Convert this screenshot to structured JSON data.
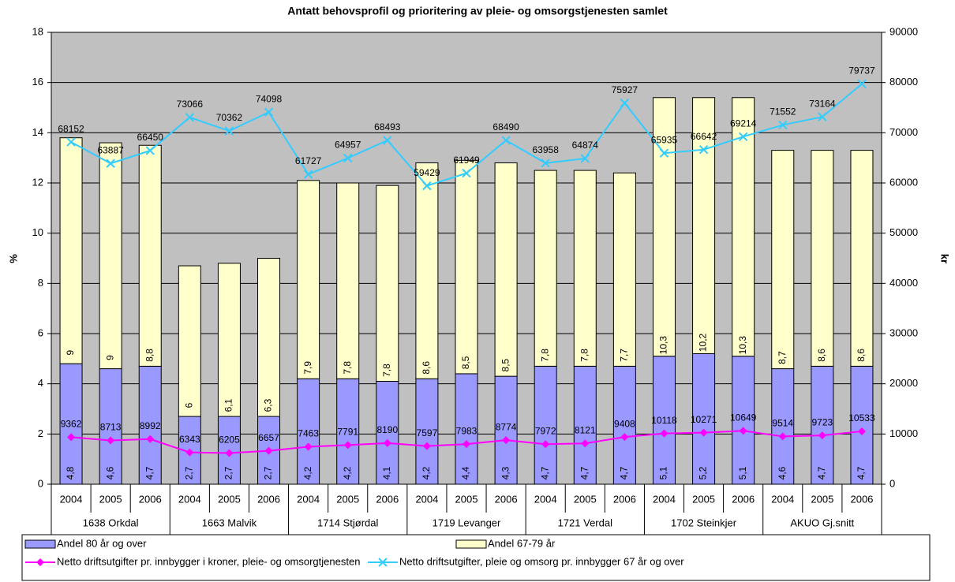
{
  "chart_data": {
    "type": "bar",
    "stacked": true,
    "title": "Antatt behovsprofil og prioritering av pleie- og omsorgstjenesten samlet",
    "ylabel": "%",
    "y2label": "kr",
    "categories": [
      "2004",
      "2005",
      "2006",
      "2004",
      "2005",
      "2006",
      "2004",
      "2005",
      "2006",
      "2004",
      "2005",
      "2006",
      "2004",
      "2005",
      "2006",
      "2004",
      "2005",
      "2006",
      "2004",
      "2005",
      "2006"
    ],
    "groups": [
      "1638 Orkdal",
      "1663 Malvik",
      "1714 Stjørdal",
      "1719 Levanger",
      "1721 Verdal",
      "1702 Steinkjer",
      "AKUO Gj.snitt"
    ],
    "ylim": [
      0,
      18
    ],
    "yticks": [
      0,
      2,
      4,
      6,
      8,
      10,
      12,
      14,
      16,
      18
    ],
    "y2lim": [
      0,
      90000
    ],
    "y2ticks": [
      0,
      10000,
      20000,
      30000,
      40000,
      50000,
      60000,
      70000,
      80000,
      90000
    ],
    "grid": true,
    "plot_background": "#c0c0c0",
    "legend": "bottom",
    "series": [
      {
        "name": "Andel 80 år og over",
        "type": "bar",
        "color": "#9999ff",
        "values": [
          4.8,
          4.6,
          4.7,
          2.7,
          2.7,
          2.7,
          4.2,
          4.2,
          4.1,
          4.2,
          4.4,
          4.3,
          4.7,
          4.7,
          4.7,
          5.1,
          5.2,
          5.1,
          4.6,
          4.7,
          4.7
        ],
        "value_labels": [
          "4,8",
          "4,6",
          "4,7",
          "2,7",
          "2,7",
          "2,7",
          "4,2",
          "4,2",
          "4,1",
          "4,2",
          "4,4",
          "4,3",
          "4,7",
          "4,7",
          "4,7",
          "5,1",
          "5,2",
          "5,1",
          "4,6",
          "4,7",
          "4,7"
        ]
      },
      {
        "name": "Andel 67-79 år",
        "type": "bar",
        "color": "#ffffcc",
        "values": [
          9,
          9,
          8.8,
          6,
          6.1,
          6.3,
          7.9,
          7.8,
          7.8,
          8.6,
          8.5,
          8.5,
          7.8,
          7.8,
          7.7,
          10.3,
          10.2,
          10.3,
          8.7,
          8.6,
          8.6
        ],
        "value_labels": [
          "9",
          "9",
          "8,8",
          "6",
          "6,1",
          "6,3",
          "7,9",
          "7,8",
          "7,8",
          "8,6",
          "8,5",
          "8,5",
          "7,8",
          "7,8",
          "7,7",
          "10,3",
          "10,2",
          "10,3",
          "8,7",
          "8,6",
          "8,6"
        ]
      },
      {
        "name": "Netto driftsutgifter pr. innbygger i kroner, pleie- og omsorgtjenesten",
        "type": "line",
        "axis": "y2",
        "color": "#ff00ff",
        "marker": "diamond",
        "values": [
          9362,
          8713,
          8992,
          6343,
          6205,
          6657,
          7463,
          7791,
          8190,
          7597,
          7983,
          8774,
          7972,
          8121,
          9408,
          10118,
          10271,
          10649,
          9514,
          9723,
          10533
        ]
      },
      {
        "name": "Netto driftsutgifter, pleie og omsorg pr. innbygger 67 år og over",
        "type": "line",
        "axis": "y2",
        "color": "#33ccff",
        "marker": "x",
        "values": [
          68152,
          63887,
          66450,
          73066,
          70362,
          74098,
          61727,
          64957,
          68493,
          59429,
          61949,
          68490,
          63958,
          64874,
          75927,
          65935,
          66642,
          69214,
          71552,
          73164,
          79737
        ]
      }
    ]
  }
}
